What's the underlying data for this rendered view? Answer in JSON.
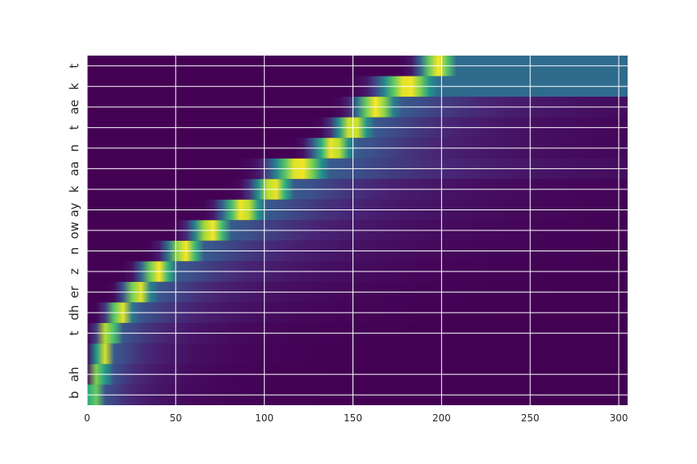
{
  "chart_data": {
    "type": "heatmap",
    "title": "",
    "xlabel": "",
    "ylabel": "",
    "colormap": "viridis",
    "background_color": "#440154",
    "grid": true,
    "grid_color": "#ffffff",
    "xlim": [
      0,
      305
    ],
    "xticks": [
      0,
      50,
      100,
      150,
      200,
      250,
      300
    ],
    "rows_bottom_to_top": [
      "b",
      "ah",
      "",
      "t",
      "dh",
      "er",
      "z",
      "n",
      "ow",
      "ay",
      "k",
      "aa",
      "n",
      "t",
      "ae",
      "k",
      "t"
    ],
    "ytick_labels": [
      {
        "label": "b",
        "row": 0
      },
      {
        "label": "ah",
        "row": 1
      },
      {
        "label": "t",
        "row": 3
      },
      {
        "label": "dh",
        "row": 4
      },
      {
        "label": "er",
        "row": 5
      },
      {
        "label": "z",
        "row": 6
      },
      {
        "label": "n",
        "row": 7
      },
      {
        "label": "ow",
        "row": 8
      },
      {
        "label": "ay",
        "row": 9
      },
      {
        "label": "k",
        "row": 10
      },
      {
        "label": "aa",
        "row": 11
      },
      {
        "label": "n",
        "row": 12
      },
      {
        "label": "t",
        "row": 13
      },
      {
        "label": "ae",
        "row": 14
      },
      {
        "label": "k",
        "row": 15
      },
      {
        "label": "t",
        "row": 16
      }
    ],
    "alignment_peaks": [
      {
        "row": 0,
        "x": 3,
        "width": 6
      },
      {
        "row": 1,
        "x": 7,
        "width": 6
      },
      {
        "row": 2,
        "x": 9,
        "width": 7
      },
      {
        "row": 3,
        "x": 12,
        "width": 8
      },
      {
        "row": 4,
        "x": 19,
        "width": 10
      },
      {
        "row": 5,
        "x": 29,
        "width": 11
      },
      {
        "row": 6,
        "x": 40,
        "width": 13
      },
      {
        "row": 7,
        "x": 55,
        "width": 14
      },
      {
        "row": 8,
        "x": 70,
        "width": 15
      },
      {
        "row": 9,
        "x": 88,
        "width": 16
      },
      {
        "row": 10,
        "x": 105,
        "width": 15
      },
      {
        "row": 11,
        "x": 120,
        "width": 22
      },
      {
        "row": 12,
        "x": 139,
        "width": 15
      },
      {
        "row": 13,
        "x": 150,
        "width": 14
      },
      {
        "row": 14,
        "x": 163,
        "width": 16
      },
      {
        "row": 15,
        "x": 181,
        "width": 22
      },
      {
        "row": 16,
        "x": 198,
        "width": 14
      }
    ]
  }
}
